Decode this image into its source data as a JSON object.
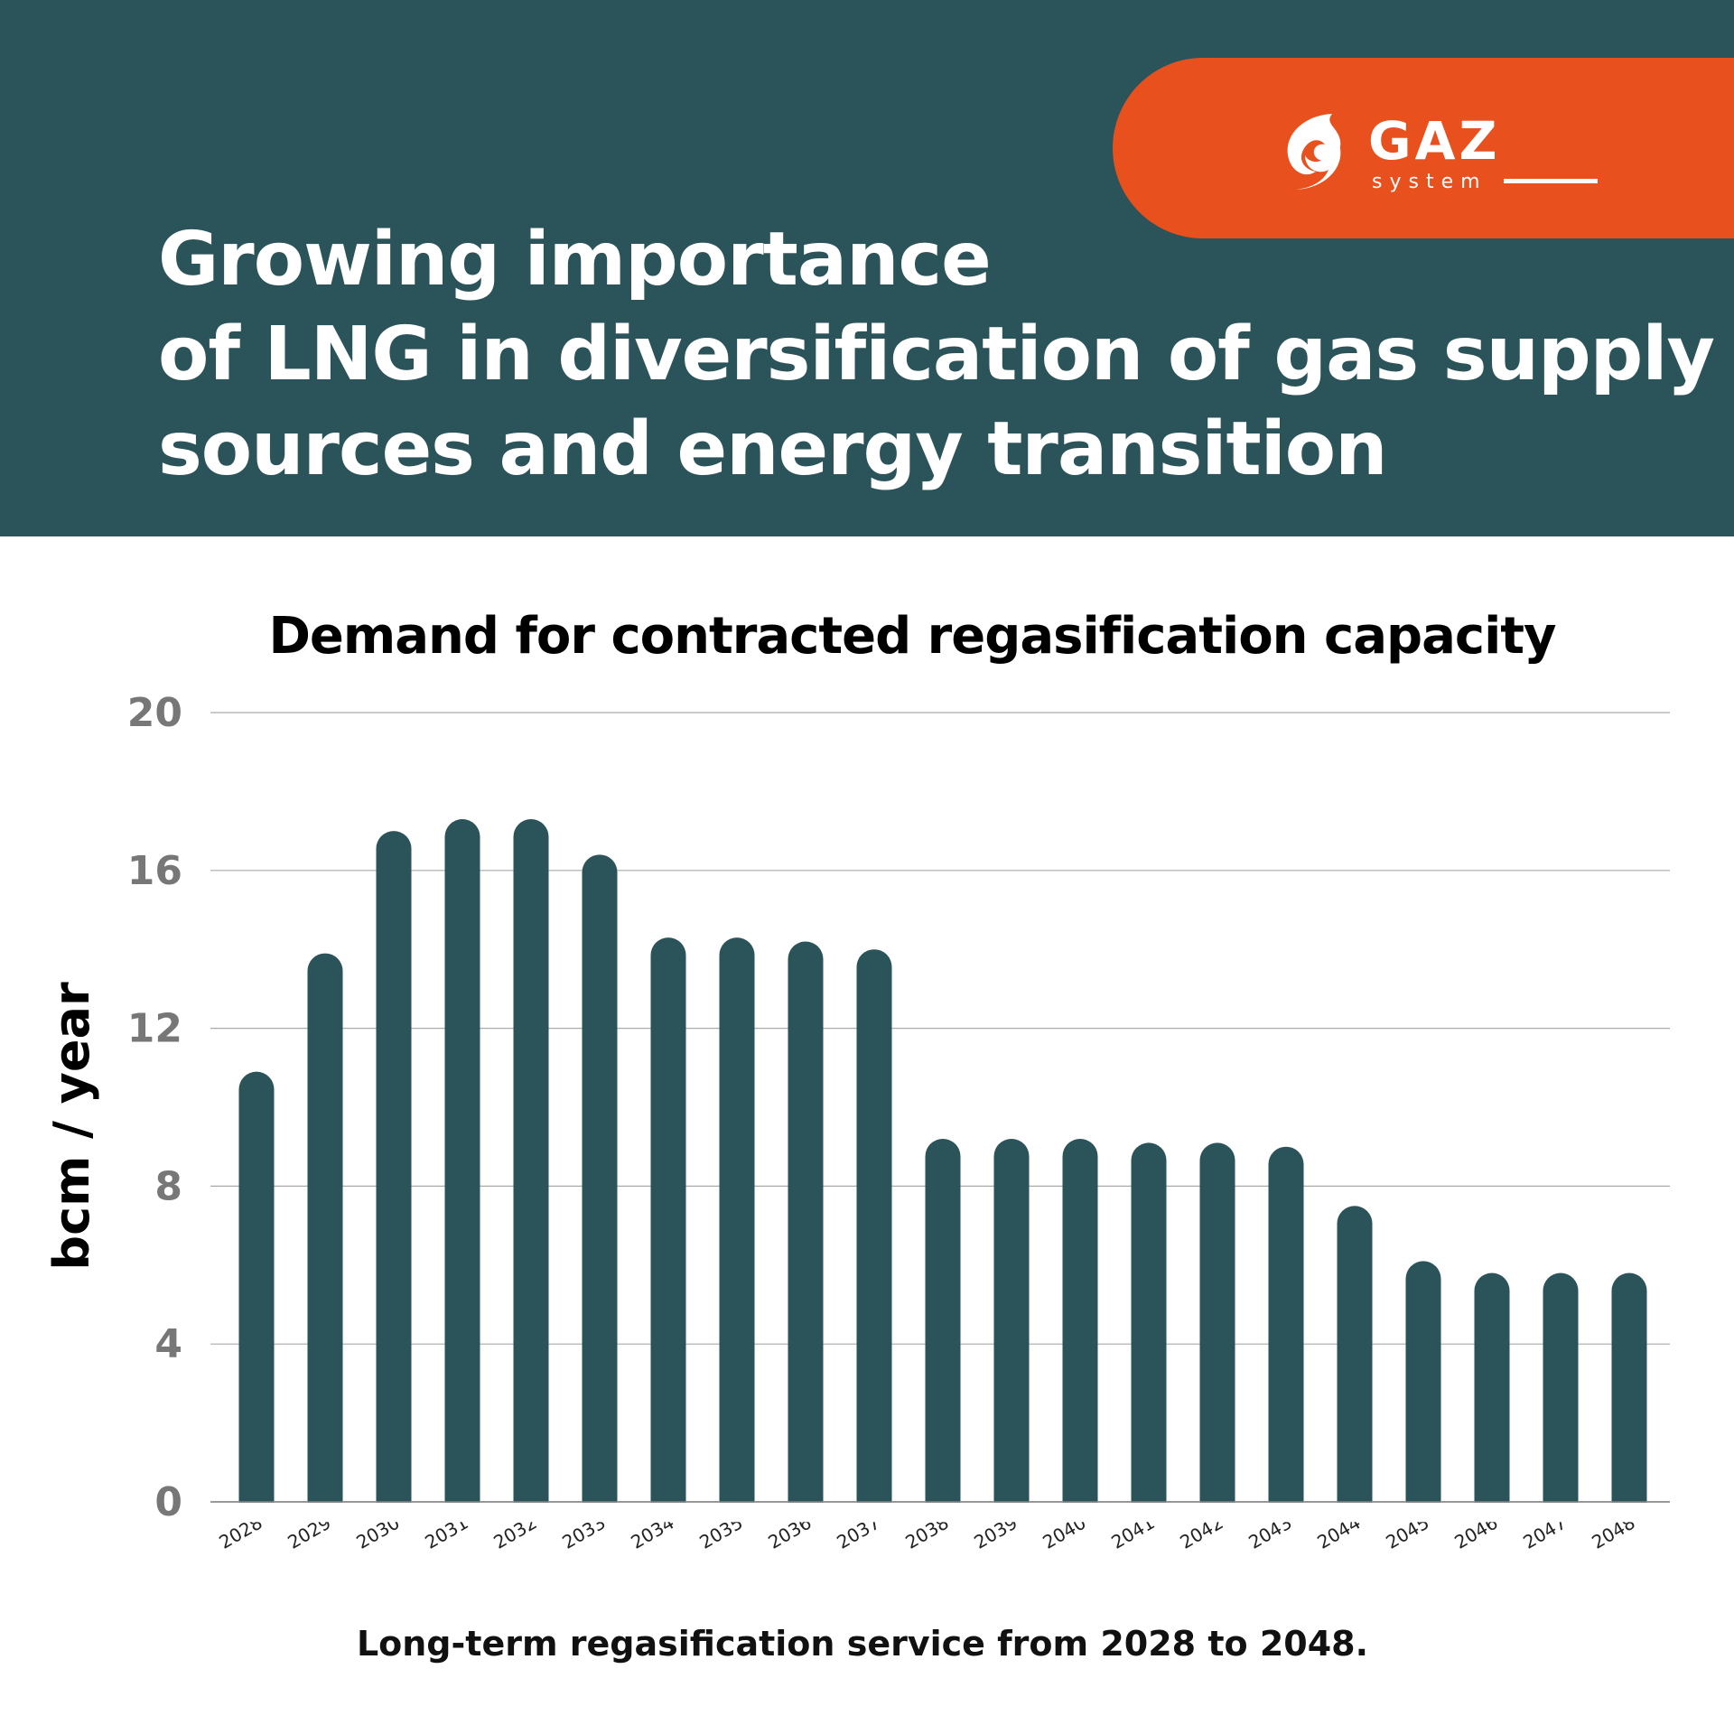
{
  "header": {
    "title_lines": [
      "Growing importance",
      "of LNG in diversification of gas supply",
      "sources and energy transition"
    ],
    "logo_text": "GAZ system",
    "background_color": "#2a535a",
    "accent_color": "#e8501e"
  },
  "chart_data": {
    "type": "bar",
    "title": "Demand for contracted regasification capacity",
    "ylabel": "bcm / year",
    "xlabel": "",
    "ylim": [
      0,
      20
    ],
    "yticks": [
      0,
      4,
      8,
      12,
      16,
      20
    ],
    "grid": true,
    "bar_color": "#2a535a",
    "categories": [
      "2028",
      "2029",
      "2030",
      "2031",
      "2032",
      "2033",
      "2034",
      "2035",
      "2036",
      "2037",
      "2038",
      "2039",
      "2040",
      "2041",
      "2042",
      "2043",
      "2044",
      "2045",
      "2046",
      "2047",
      "2048"
    ],
    "values": [
      10.9,
      13.9,
      17.0,
      17.3,
      17.3,
      16.4,
      14.3,
      14.3,
      14.2,
      14.0,
      9.2,
      9.2,
      9.2,
      9.1,
      9.1,
      9.0,
      7.5,
      6.1,
      5.8,
      5.8,
      5.8
    ]
  },
  "footer": {
    "note": "Long-term regasification service from 2028 to 2048."
  }
}
